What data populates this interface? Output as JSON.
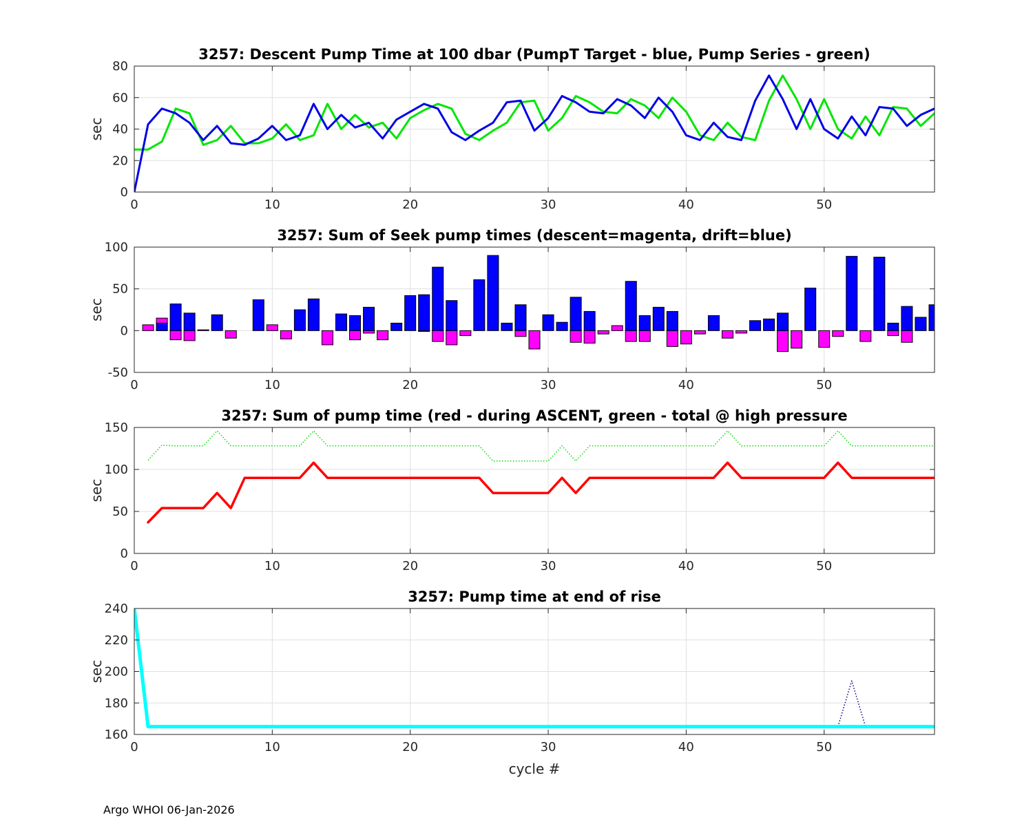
{
  "footer": "Argo WHOI 06-Jan-2026",
  "chart_data": [
    {
      "type": "line",
      "title": "3257: Descent Pump Time at 100 dbar (PumpT Target - blue, Pump Series - green)",
      "xlabel": "",
      "ylabel": "sec",
      "xlim": [
        0,
        58
      ],
      "ylim": [
        0,
        80
      ],
      "xticks": [
        0,
        10,
        20,
        30,
        40,
        50
      ],
      "yticks": [
        0,
        20,
        40,
        60,
        80
      ],
      "grid": true,
      "series": [
        {
          "color": "#00e600",
          "style": "solid",
          "x": [
            0,
            1,
            2,
            3,
            4,
            5,
            6,
            7,
            8,
            9,
            10,
            11,
            12,
            13,
            14,
            15,
            16,
            17,
            18,
            19,
            20,
            21,
            22,
            23,
            24,
            25,
            26,
            27,
            28,
            29,
            30,
            31,
            32,
            33,
            34,
            35,
            36,
            37,
            38,
            39,
            40,
            41,
            42,
            43,
            44,
            45,
            46,
            47,
            48,
            49,
            50,
            51,
            52,
            53,
            54,
            55,
            56,
            57,
            58
          ],
          "y": [
            27,
            27,
            32,
            53,
            50,
            30,
            33,
            42,
            31,
            31,
            34,
            43,
            33,
            36,
            56,
            40,
            49,
            41,
            44,
            34,
            47,
            52,
            56,
            53,
            37,
            33,
            39,
            44,
            57,
            58,
            39,
            47,
            61,
            57,
            51,
            50,
            59,
            55,
            47,
            60,
            51,
            36,
            33,
            44,
            35,
            33,
            58,
            74,
            59,
            40,
            59,
            40,
            34,
            48,
            36,
            54,
            53,
            42,
            50
          ]
        },
        {
          "color": "#0000e6",
          "style": "solid",
          "x": [
            0,
            1,
            2,
            3,
            4,
            5,
            6,
            7,
            8,
            9,
            10,
            11,
            12,
            13,
            14,
            15,
            16,
            17,
            18,
            19,
            20,
            21,
            22,
            23,
            24,
            25,
            26,
            27,
            28,
            29,
            30,
            31,
            32,
            33,
            34,
            35,
            36,
            37,
            38,
            39,
            40,
            41,
            42,
            43,
            44,
            45,
            46,
            47,
            48,
            49,
            50,
            51,
            52,
            53,
            54,
            55,
            56,
            57,
            58
          ],
          "y": [
            0,
            43,
            53,
            50,
            44,
            33,
            42,
            31,
            30,
            34,
            42,
            33,
            36,
            56,
            40,
            49,
            41,
            44,
            34,
            46,
            51,
            56,
            53,
            38,
            33,
            39,
            44,
            57,
            58,
            39,
            47,
            61,
            57,
            51,
            50,
            59,
            55,
            47,
            60,
            51,
            36,
            33,
            44,
            35,
            33,
            58,
            74,
            59,
            40,
            59,
            40,
            34,
            48,
            36,
            54,
            53,
            42,
            49,
            53
          ]
        }
      ]
    },
    {
      "type": "bar",
      "title": "3257: Sum of Seek pump times (descent=magenta, drift=blue)",
      "xlabel": "",
      "ylabel": "sec",
      "xlim": [
        0,
        58
      ],
      "ylim": [
        -50,
        100
      ],
      "xticks": [
        0,
        10,
        20,
        30,
        40,
        50
      ],
      "yticks": [
        -50,
        0,
        50,
        100
      ],
      "grid": true,
      "series": [
        {
          "color": "#ff00ff",
          "x": [
            1,
            2,
            3,
            4,
            5,
            7,
            10,
            11,
            14,
            16,
            17,
            18,
            21,
            22,
            23,
            24,
            28,
            29,
            32,
            33,
            34,
            35,
            36,
            37,
            39,
            40,
            41,
            43,
            44,
            47,
            48,
            50,
            51,
            53,
            55,
            56
          ],
          "values": [
            7,
            15,
            -11,
            -12,
            1,
            -9,
            7,
            -10,
            -17,
            -11,
            -3,
            -11,
            -1,
            -13,
            -17,
            -6,
            -7,
            -22,
            -14,
            -15,
            -4,
            6,
            -13,
            -13,
            -19,
            -16,
            -4,
            -9,
            -3,
            -25,
            -21,
            -20,
            -7,
            -13,
            -6,
            -14
          ]
        },
        {
          "color": "#0000ff",
          "x": [
            2,
            3,
            4,
            6,
            9,
            12,
            13,
            15,
            16,
            17,
            19,
            20,
            21,
            22,
            23,
            25,
            26,
            27,
            28,
            30,
            31,
            32,
            33,
            36,
            37,
            38,
            39,
            42,
            45,
            46,
            47,
            49,
            52,
            54,
            55,
            56,
            57,
            58
          ],
          "values": [
            9,
            32,
            21,
            19,
            37,
            25,
            38,
            20,
            18,
            28,
            9,
            42,
            43,
            76,
            36,
            61,
            90,
            9,
            31,
            19,
            10,
            40,
            23,
            59,
            18,
            28,
            23,
            18,
            12,
            14,
            21,
            51,
            89,
            88,
            9,
            29,
            16,
            31
          ]
        }
      ]
    },
    {
      "type": "line",
      "title": "3257: Sum of pump time (red - during ASCENT, green - total @ high pressure",
      "xlabel": "",
      "ylabel": "sec",
      "xlim": [
        0,
        58
      ],
      "ylim": [
        0,
        150
      ],
      "xticks": [
        0,
        10,
        20,
        30,
        40,
        50
      ],
      "yticks": [
        0,
        50,
        100,
        150
      ],
      "grid": true,
      "series": [
        {
          "color": "#00dd00",
          "style": "dotted",
          "x": [
            1,
            2,
            3,
            4,
            5,
            6,
            7,
            8,
            9,
            10,
            11,
            12,
            13,
            14,
            15,
            16,
            17,
            18,
            19,
            20,
            21,
            22,
            23,
            24,
            25,
            26,
            27,
            28,
            29,
            30,
            31,
            32,
            33,
            34,
            35,
            36,
            37,
            38,
            39,
            40,
            41,
            42,
            43,
            44,
            45,
            46,
            47,
            48,
            49,
            50,
            51,
            52,
            53,
            54,
            55,
            56,
            57,
            58
          ],
          "y": [
            111,
            129,
            128,
            128,
            128,
            146,
            128,
            128,
            128,
            128,
            128,
            128,
            146,
            128,
            128,
            128,
            128,
            128,
            128,
            128,
            128,
            128,
            128,
            128,
            128,
            110,
            110,
            110,
            110,
            110,
            128,
            110,
            128,
            128,
            128,
            128,
            128,
            128,
            128,
            128,
            128,
            128,
            146,
            128,
            128,
            128,
            128,
            128,
            128,
            128,
            146,
            128,
            128,
            128,
            128,
            128,
            128,
            128
          ]
        },
        {
          "color": "#ff0000",
          "style": "solid",
          "x": [
            1,
            2,
            3,
            4,
            5,
            6,
            7,
            8,
            9,
            10,
            11,
            12,
            13,
            14,
            15,
            16,
            17,
            18,
            19,
            20,
            21,
            22,
            23,
            24,
            25,
            26,
            27,
            28,
            29,
            30,
            31,
            32,
            33,
            34,
            35,
            36,
            37,
            38,
            39,
            40,
            41,
            42,
            43,
            44,
            45,
            46,
            47,
            48,
            49,
            50,
            51,
            52,
            53,
            54,
            55,
            56,
            57,
            58
          ],
          "y": [
            37,
            54,
            54,
            54,
            54,
            72,
            54,
            90,
            90,
            90,
            90,
            90,
            108,
            90,
            90,
            90,
            90,
            90,
            90,
            90,
            90,
            90,
            90,
            90,
            90,
            72,
            72,
            72,
            72,
            72,
            90,
            72,
            90,
            90,
            90,
            90,
            90,
            90,
            90,
            90,
            90,
            90,
            108,
            90,
            90,
            90,
            90,
            90,
            90,
            90,
            108,
            90,
            90,
            90,
            90,
            90,
            90,
            90
          ]
        }
      ]
    },
    {
      "type": "line",
      "title": "3257: Pump time at end of rise",
      "xlabel": "cycle #",
      "ylabel": "sec",
      "xlim": [
        0,
        58
      ],
      "ylim": [
        160,
        240
      ],
      "xticks": [
        0,
        10,
        20,
        30,
        40,
        50
      ],
      "yticks": [
        160,
        180,
        200,
        220,
        240
      ],
      "grid": true,
      "series": [
        {
          "color": "#000080",
          "style": "dotted",
          "x": [
            51,
            52,
            53
          ],
          "y": [
            165,
            194,
            165
          ]
        },
        {
          "color": "#00ffff",
          "style": "solid",
          "x": [
            0,
            1,
            2,
            3,
            4,
            5,
            6,
            7,
            8,
            9,
            10,
            11,
            12,
            13,
            14,
            15,
            16,
            17,
            18,
            19,
            20,
            21,
            22,
            23,
            24,
            25,
            26,
            27,
            28,
            29,
            30,
            31,
            32,
            33,
            34,
            35,
            36,
            37,
            38,
            39,
            40,
            41,
            42,
            43,
            44,
            45,
            46,
            47,
            48,
            49,
            50,
            51,
            52,
            53,
            54,
            55,
            56,
            57,
            58
          ],
          "y": [
            240,
            165,
            165,
            165,
            165,
            165,
            165,
            165,
            165,
            165,
            165,
            165,
            165,
            165,
            165,
            165,
            165,
            165,
            165,
            165,
            165,
            165,
            165,
            165,
            165,
            165,
            165,
            165,
            165,
            165,
            165,
            165,
            165,
            165,
            165,
            165,
            165,
            165,
            165,
            165,
            165,
            165,
            165,
            165,
            165,
            165,
            165,
            165,
            165,
            165,
            165,
            165,
            165,
            165,
            165,
            165,
            165,
            165,
            165
          ]
        }
      ]
    }
  ]
}
